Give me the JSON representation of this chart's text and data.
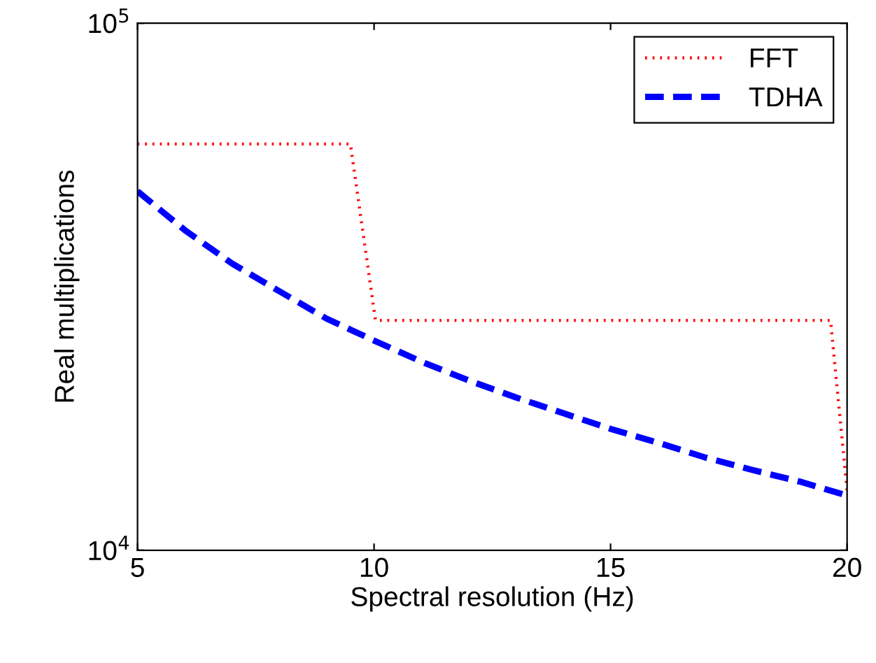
{
  "chart_data": {
    "type": "line",
    "xlabel": "Spectral resolution (Hz)",
    "ylabel": "Real multiplications",
    "log": "y",
    "xlim": [
      5,
      20
    ],
    "ylim": [
      10000,
      100000
    ],
    "xticks": [
      5,
      10,
      15,
      20
    ],
    "yticks": [
      {
        "value": 10000,
        "label": "10$^{4}$"
      },
      {
        "value": 100000,
        "label": "10$^{5}$"
      }
    ],
    "legend": "top right",
    "grid": false,
    "marker": "none",
    "series": [
      {
        "name": "FFT",
        "color": "#ff0000",
        "line_style": "dotted",
        "x": [
          5,
          9.5,
          10.03,
          19.65,
          20
        ],
        "values": [
          59000,
          59000,
          27300,
          27300,
          13000
        ]
      },
      {
        "name": "TDHA",
        "color": "#0000ff",
        "line_style": "dashed",
        "x": [
          5,
          6,
          7,
          8,
          9,
          10,
          11,
          12,
          13,
          14,
          15,
          16,
          17,
          18,
          19,
          20
        ],
        "values": [
          48000,
          40500,
          35000,
          31000,
          27500,
          25000,
          22800,
          21000,
          19500,
          18200,
          17000,
          16000,
          15000,
          14200,
          13500,
          12700
        ]
      }
    ]
  }
}
